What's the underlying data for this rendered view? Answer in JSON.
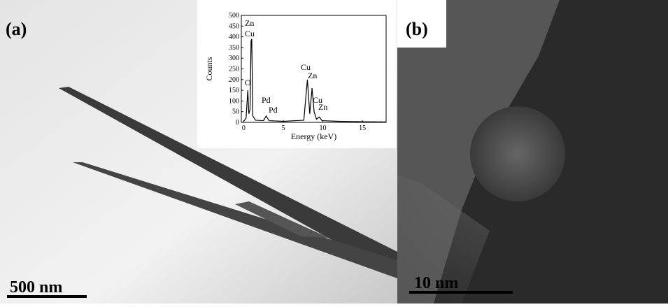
{
  "panels": [
    {
      "label": "(a)",
      "scale_bar": "500 nm"
    },
    {
      "label": "(b)",
      "scale_bar": "10 nm"
    }
  ],
  "chart_data": {
    "type": "line",
    "x_label": "Energy (keV)",
    "y_label": "Counts",
    "x": [
      0,
      0.3,
      0.52,
      0.65,
      0.8,
      0.93,
      1.02,
      1.15,
      1.5,
      2.5,
      2.84,
      3.2,
      5,
      7.6,
      8.05,
      8.35,
      8.64,
      8.9,
      9.2,
      9.57,
      9.9,
      12,
      15,
      18
    ],
    "values": [
      5,
      20,
      150,
      40,
      60,
      380,
      390,
      30,
      10,
      8,
      30,
      8,
      5,
      10,
      200,
      40,
      160,
      50,
      15,
      25,
      8,
      5,
      3,
      2
    ],
    "color": "#000000",
    "xlim": [
      -0.3,
      18
    ],
    "ylim": [
      0,
      500
    ],
    "xticks": [
      0,
      5,
      10,
      15
    ],
    "yticks": [
      0,
      50,
      100,
      150,
      200,
      250,
      300,
      350,
      400,
      450,
      500
    ],
    "annotations": [
      "Zn",
      "Cu",
      "O",
      "Pd",
      "Pd",
      "Cu",
      "Zn",
      "Cu",
      "Zn"
    ]
  }
}
